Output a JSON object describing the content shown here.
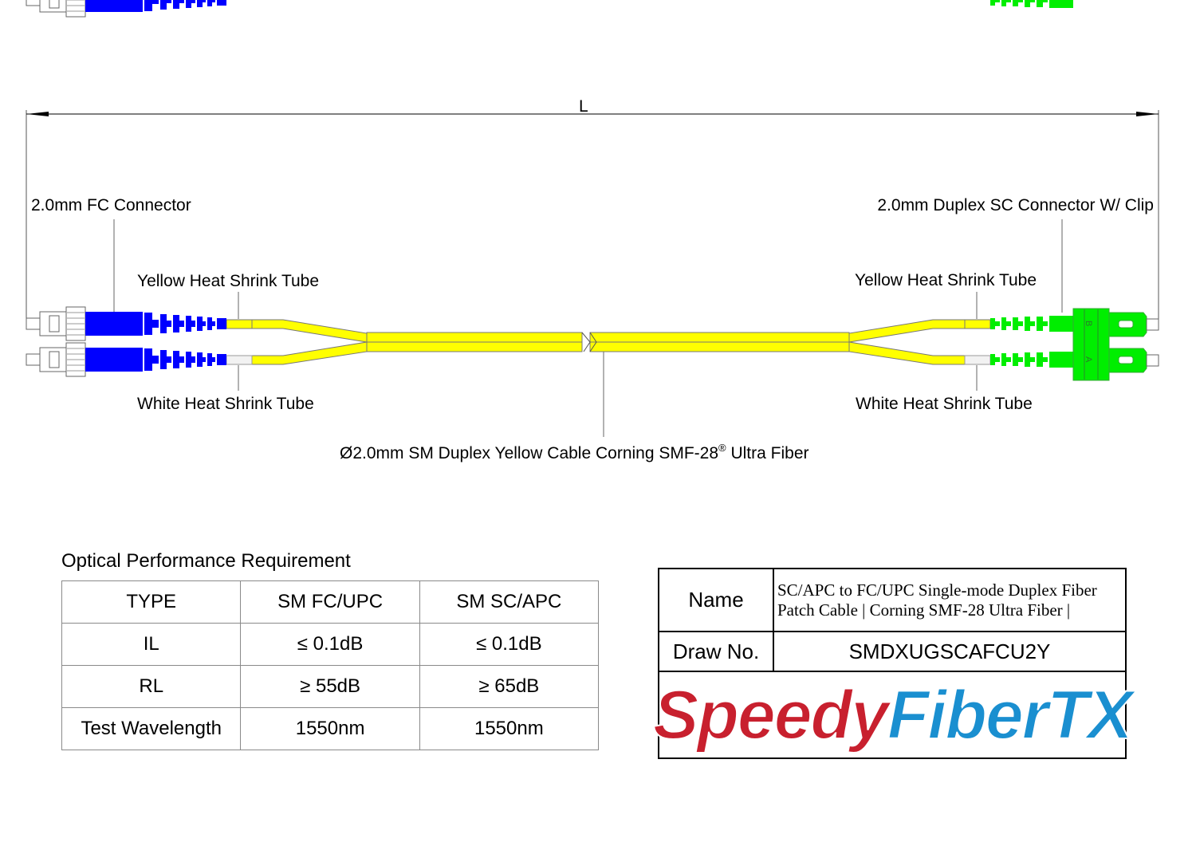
{
  "drawing": {
    "length_label": "L",
    "left_connector": "2.0mm FC Connector",
    "right_connector": "2.0mm Duplex SC Connector W/ Clip",
    "left_yellow_tube": "Yellow Heat Shrink Tube",
    "right_yellow_tube": "Yellow Heat Shrink Tube",
    "left_white_tube": "White Heat Shrink Tube",
    "right_white_tube": "White Heat Shrink Tube",
    "cable_label": "Ø2.0mm SM Duplex Yellow Cable  Corning SMF-28",
    "cable_label_sup": "®",
    "cable_label_end": " Ultra Fiber",
    "clip_label_b": "B",
    "clip_label_a": "A",
    "colors": {
      "cable": "#ffff00",
      "fc_boot": "#0000ff",
      "sc_boot": "#00ee00",
      "heat_shrink_white": "#f2f2f2"
    }
  },
  "performance": {
    "title": "Optical Performance Requirement",
    "rows": [
      [
        "TYPE",
        "SM FC/UPC",
        "SM SC/APC"
      ],
      [
        "IL",
        "≤ 0.1dB",
        "≤ 0.1dB"
      ],
      [
        "RL",
        "≥ 55dB",
        "≥ 65dB"
      ],
      [
        "Test Wavelength",
        "1550nm",
        "1550nm"
      ]
    ]
  },
  "title_block": {
    "name_label": "Name",
    "name_line1": "SC/APC to FC/UPC Single-mode Duplex Fiber",
    "name_line2": "Patch Cable | Corning SMF-28 Ultra Fiber |",
    "draw_no_label": "Draw No.",
    "draw_no": "SMDXUGSCAFCU2Y",
    "logo_part1": "Speedy",
    "logo_part2": "FiberTX",
    "logo_colors": {
      "speedy": "#c8202e",
      "fibertx": "#1a8fd0"
    }
  }
}
